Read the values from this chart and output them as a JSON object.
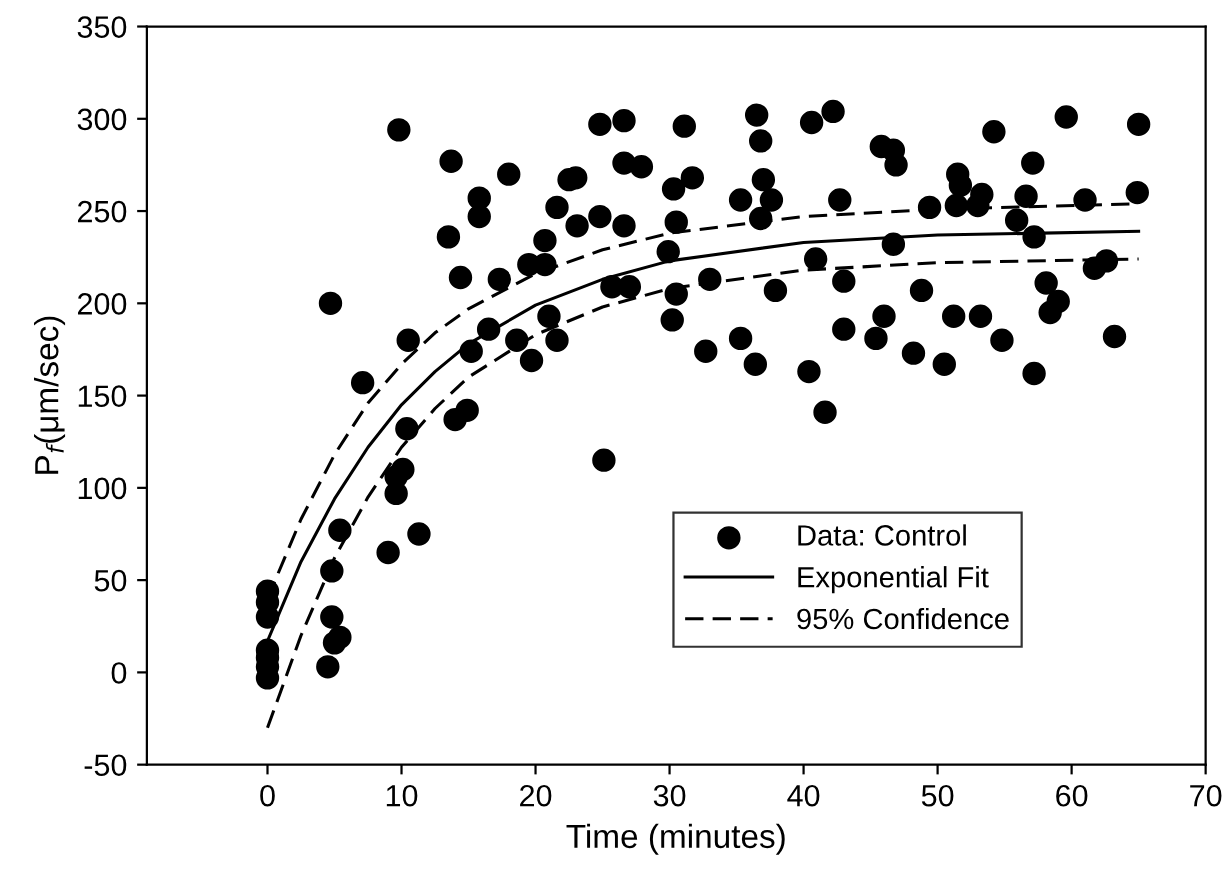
{
  "chart_data": {
    "type": "scatter",
    "xlabel": "Time (minutes)",
    "ylabel": "P$_{f}$(μm/sec)",
    "xlim": [
      -9,
      70
    ],
    "ylim": [
      -50,
      350
    ],
    "xticks": [
      0,
      10,
      20,
      30,
      40,
      50,
      60,
      70
    ],
    "yticks": [
      -50,
      0,
      50,
      100,
      150,
      200,
      250,
      300,
      350
    ],
    "grid": false,
    "legend": "bottom right",
    "series": [
      {
        "name": "Data: Control",
        "marker": "circle",
        "color": "#000000",
        "x": [
          0,
          0,
          0,
          0,
          0,
          0,
          0,
          4.7,
          4.8,
          4.8,
          5.4,
          5.0,
          4.5,
          5.4,
          7.1,
          9.0,
          9.6,
          9.6,
          10.1,
          9.8,
          10.4,
          10.5,
          11.3,
          13.7,
          13.5,
          14.0,
          14.4,
          14.9,
          15.2,
          15.8,
          15.8,
          16.5,
          17.3,
          18.0,
          18.6,
          19.5,
          19.7,
          20.7,
          20.7,
          21.0,
          21.6,
          21.6,
          22.5,
          23.0,
          23.1,
          24.8,
          24.8,
          25.1,
          25.7,
          26.6,
          26.6,
          26.6,
          27.0,
          27.9,
          29.9,
          30.2,
          30.3,
          30.5,
          30.5,
          31.1,
          31.7,
          32.7,
          33.0,
          35.3,
          35.3,
          36.4,
          36.5,
          36.8,
          36.8,
          37.0,
          37.6,
          37.9,
          40.4,
          40.6,
          40.9,
          41.6,
          42.2,
          42.7,
          43.0,
          43.0,
          45.4,
          45.8,
          46.0,
          46.7,
          46.7,
          46.9,
          48.2,
          48.8,
          49.4,
          50.5,
          51.2,
          51.4,
          51.5,
          51.7,
          53.0,
          53.2,
          53.3,
          54.2,
          54.8,
          55.9,
          56.6,
          57.1,
          57.2,
          57.2,
          58.1,
          58.4,
          59.0,
          59.6,
          61.0,
          61.7,
          62.6,
          63.2,
          64.9,
          65.0
        ],
        "values": [
          44,
          38,
          30,
          12,
          8,
          3,
          -3,
          200,
          55,
          30,
          19,
          16,
          3,
          77,
          157,
          65,
          106,
          97,
          110,
          294,
          132,
          180,
          75,
          277,
          236,
          137,
          214,
          142,
          174,
          257,
          247,
          186,
          213,
          270,
          180,
          221,
          169,
          221,
          234,
          193,
          252,
          180,
          267,
          268,
          242,
          297,
          247,
          115,
          209,
          299,
          276,
          242,
          209,
          274,
          228,
          191,
          262,
          244,
          205,
          296,
          268,
          174,
          213,
          256,
          181,
          167,
          302,
          288,
          246,
          267,
          256,
          207,
          163,
          298,
          224,
          141,
          304,
          256,
          212,
          186,
          181,
          285,
          193,
          283,
          232,
          275,
          173,
          207,
          252,
          167,
          193,
          253,
          270,
          264,
          253,
          193,
          259,
          293,
          180,
          245,
          258,
          276,
          236,
          162,
          211,
          195,
          201,
          301,
          256,
          219,
          223,
          182,
          260,
          297
        ]
      },
      {
        "name": "Exponential Fit",
        "type": "line",
        "line_style": "solid",
        "color": "#000000",
        "x": [
          0,
          2.5,
          5,
          7.5,
          10,
          12.5,
          15,
          20,
          25,
          30,
          40,
          50,
          65
        ],
        "values": [
          17,
          60,
          94,
          122,
          145,
          163,
          178,
          199,
          213,
          223,
          233,
          237,
          239
        ]
      },
      {
        "name": "95% Confidence",
        "type": "line",
        "line_style": "dashed",
        "color": "#000000",
        "x": [
          0,
          2.5,
          5,
          7.5,
          10,
          12.5,
          15,
          20,
          25,
          30,
          40,
          50,
          65
        ],
        "values": [
          40,
          83,
          118,
          146,
          167,
          184,
          197,
          216,
          229,
          238,
          247,
          251,
          254
        ]
      },
      {
        "type": "line",
        "line_style": "dashed",
        "color": "#000000",
        "x": [
          0,
          2.5,
          5,
          7.5,
          10,
          12.5,
          15,
          20,
          25,
          30,
          40,
          50,
          65
        ],
        "values": [
          -30,
          20,
          62,
          95,
          122,
          143,
          160,
          183,
          198,
          208,
          218,
          222,
          224
        ]
      }
    ]
  }
}
